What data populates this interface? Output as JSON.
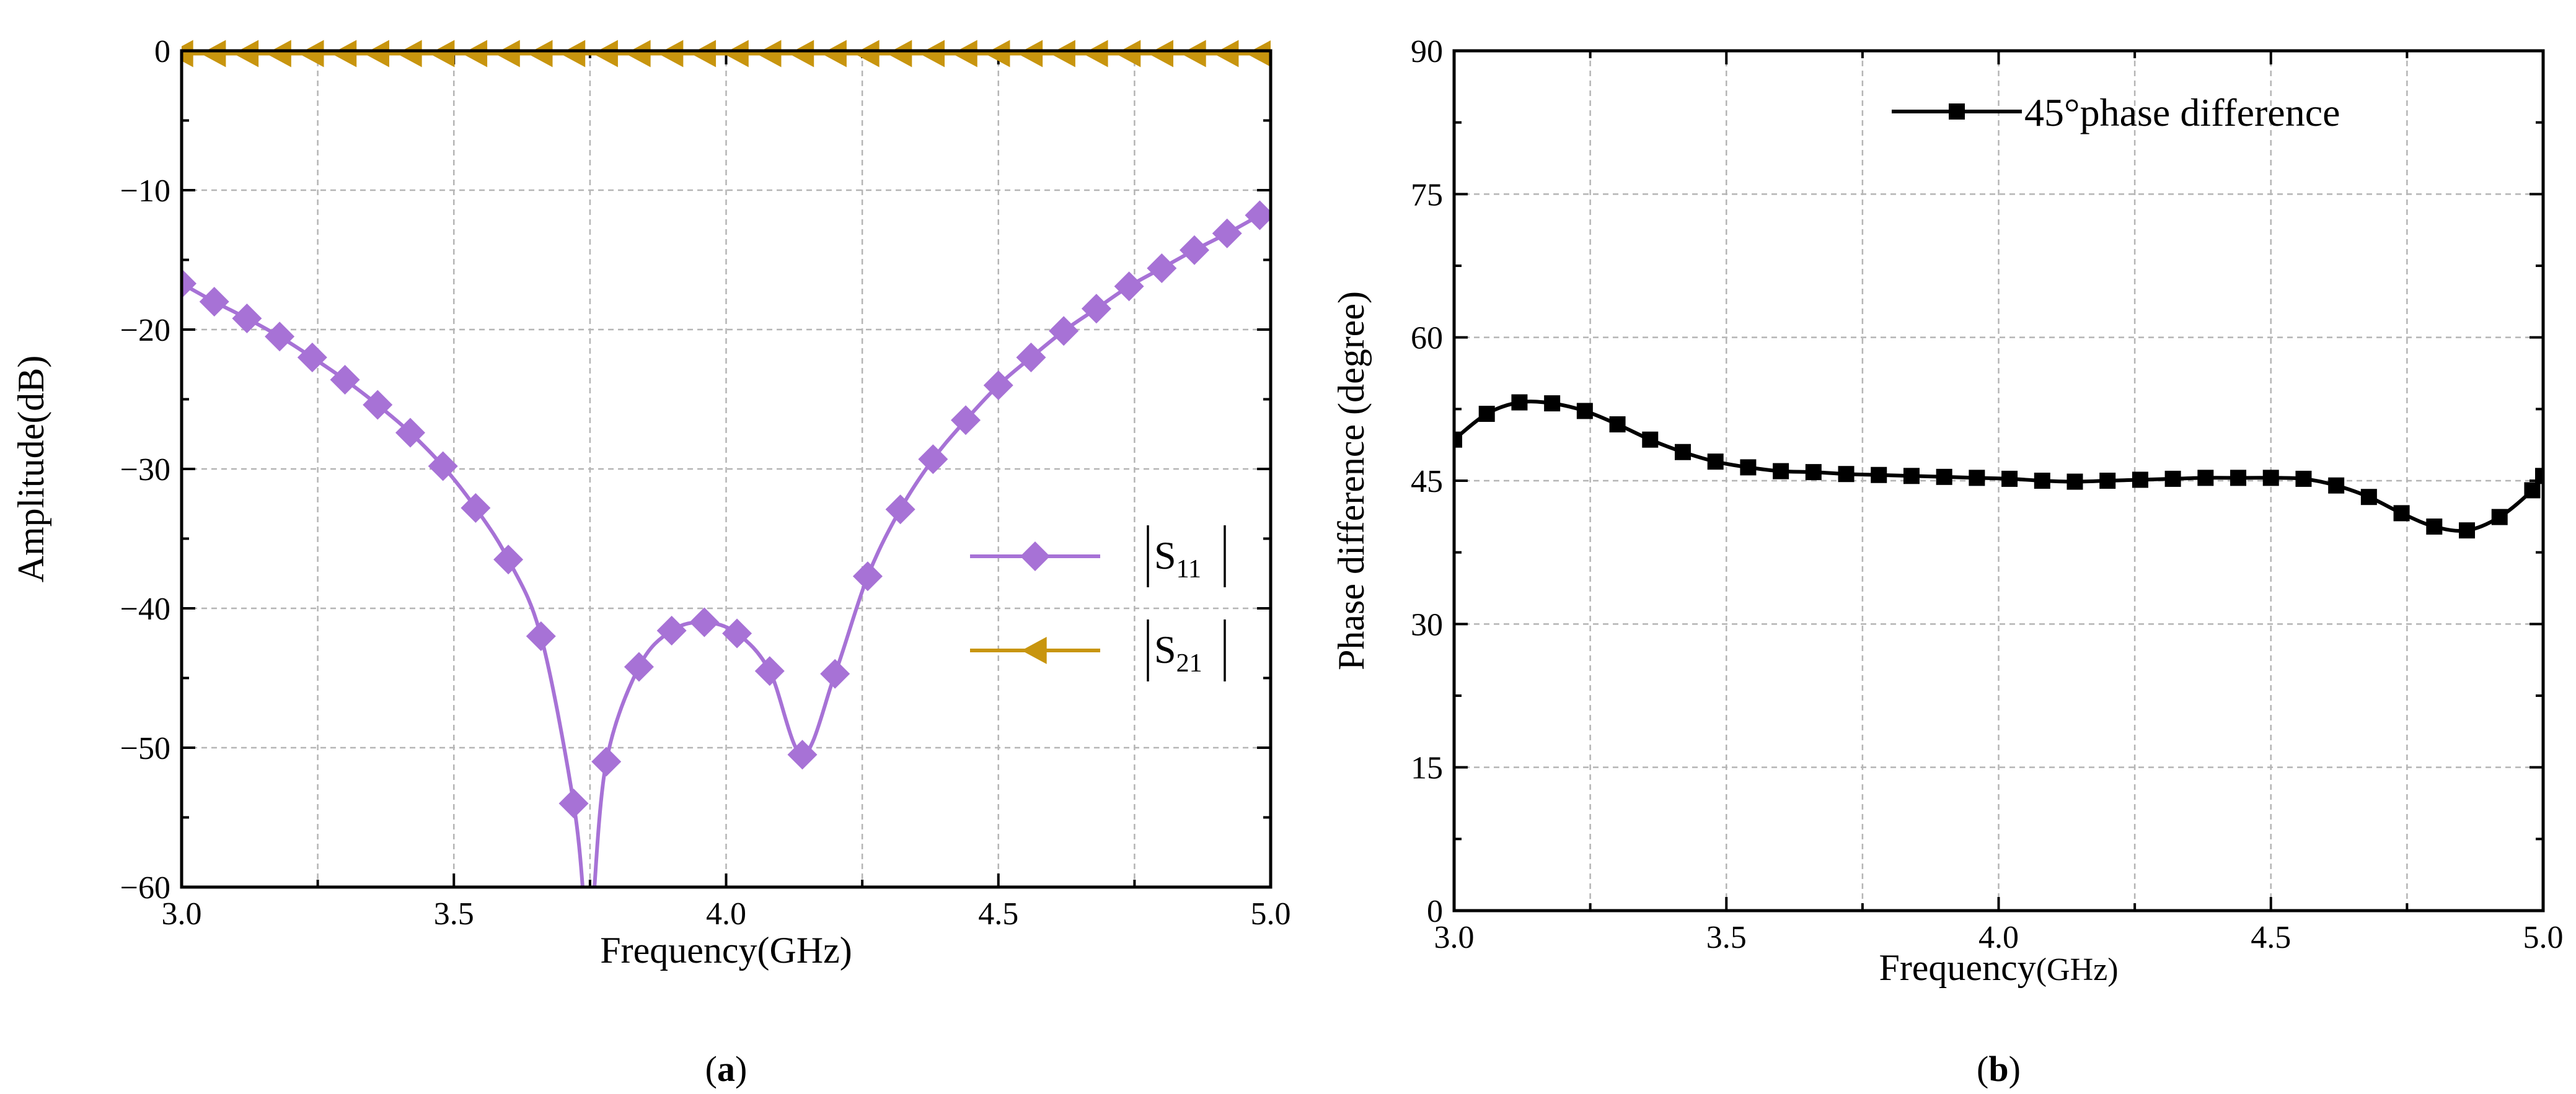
{
  "chart_data": [
    {
      "type": "line",
      "panel": "a",
      "caption": "(a)",
      "xlabel": "Frequency(GHz)",
      "ylabel": "Amplitude(dB)",
      "xlim": [
        3.0,
        5.0
      ],
      "ylim": [
        -60,
        0
      ],
      "xticks": [
        "3.0",
        "3.5",
        "4.0",
        "4.5",
        "5.0"
      ],
      "yticks": [
        "0",
        "−10",
        "−20",
        "−30",
        "−40",
        "−50",
        "−60"
      ],
      "grid": true,
      "legend_position": "center-right",
      "series": [
        {
          "name": "|S11|",
          "legend_main": "S",
          "legend_sub": "11",
          "color": "#a772d6",
          "marker": "diamond",
          "x": [
            3.0,
            3.06,
            3.12,
            3.18,
            3.24,
            3.3,
            3.36,
            3.42,
            3.48,
            3.54,
            3.6,
            3.66,
            3.72,
            3.78,
            3.84,
            3.9,
            3.96,
            4.02,
            4.08,
            4.14,
            4.2,
            4.26,
            4.32,
            4.38,
            4.44,
            4.5,
            4.56,
            4.62,
            4.68,
            4.74,
            4.8,
            4.86,
            4.92,
            4.98
          ],
          "values": [
            -16.7,
            -18.0,
            -19.2,
            -20.5,
            -22.0,
            -23.6,
            -25.4,
            -27.4,
            -29.8,
            -32.8,
            -36.5,
            -42.0,
            -54.0,
            -51.0,
            -44.2,
            -41.6,
            -41.0,
            -41.8,
            -44.5,
            -50.5,
            -44.7,
            -37.7,
            -32.9,
            -29.3,
            -26.5,
            -24.0,
            -22.0,
            -20.1,
            -18.5,
            -16.9,
            -15.6,
            -14.3,
            -13.1,
            -11.8
          ],
          "dip_x": [
            3.74,
            3.755
          ]
        },
        {
          "name": "|S21|",
          "legend_main": "S",
          "legend_sub": "21",
          "color": "#c8950e",
          "marker": "triangle-left",
          "x": [
            3.0,
            3.06,
            3.12,
            3.18,
            3.24,
            3.3,
            3.36,
            3.42,
            3.48,
            3.54,
            3.6,
            3.66,
            3.72,
            3.78,
            3.84,
            3.9,
            3.96,
            4.02,
            4.08,
            4.14,
            4.2,
            4.26,
            4.32,
            4.38,
            4.44,
            4.5,
            4.56,
            4.62,
            4.68,
            4.74,
            4.8,
            4.86,
            4.92,
            4.98
          ],
          "values": [
            -0.2,
            -0.2,
            -0.2,
            -0.2,
            -0.2,
            -0.2,
            -0.2,
            -0.2,
            -0.2,
            -0.2,
            -0.2,
            -0.2,
            -0.2,
            -0.2,
            -0.2,
            -0.2,
            -0.2,
            -0.2,
            -0.2,
            -0.2,
            -0.2,
            -0.2,
            -0.2,
            -0.2,
            -0.2,
            -0.2,
            -0.2,
            -0.2,
            -0.2,
            -0.2,
            -0.2,
            -0.2,
            -0.2,
            -0.2
          ]
        }
      ]
    },
    {
      "type": "line",
      "panel": "b",
      "caption": "(b)",
      "xlabel": "Frequency",
      "xlabel_unit": "(GHz)",
      "ylabel": "Phase difference (degree)",
      "xlim": [
        3.0,
        5.0
      ],
      "ylim": [
        0,
        90
      ],
      "xticks": [
        "3.0",
        "3.5",
        "4.0",
        "4.5",
        "5.0"
      ],
      "yticks": [
        "0",
        "15",
        "30",
        "45",
        "60",
        "75",
        "90"
      ],
      "grid": true,
      "legend_position": "top-right",
      "series": [
        {
          "name": "45°phase difference",
          "color": "#000000",
          "marker": "square",
          "x": [
            3.0,
            3.06,
            3.12,
            3.18,
            3.24,
            3.3,
            3.36,
            3.42,
            3.48,
            3.54,
            3.6,
            3.66,
            3.72,
            3.78,
            3.84,
            3.9,
            3.96,
            4.02,
            4.08,
            4.14,
            4.2,
            4.26,
            4.32,
            4.38,
            4.44,
            4.5,
            4.56,
            4.62,
            4.68,
            4.74,
            4.8,
            4.86,
            4.92,
            4.98,
            5.0
          ],
          "values": [
            49.3,
            52.0,
            53.2,
            53.1,
            52.3,
            50.9,
            49.3,
            48.0,
            47.0,
            46.4,
            46.0,
            45.9,
            45.7,
            45.6,
            45.5,
            45.4,
            45.3,
            45.2,
            45.0,
            44.9,
            45.0,
            45.1,
            45.2,
            45.3,
            45.3,
            45.3,
            45.2,
            44.5,
            43.3,
            41.6,
            40.2,
            39.8,
            41.2,
            44.0,
            45.5
          ]
        }
      ]
    }
  ]
}
